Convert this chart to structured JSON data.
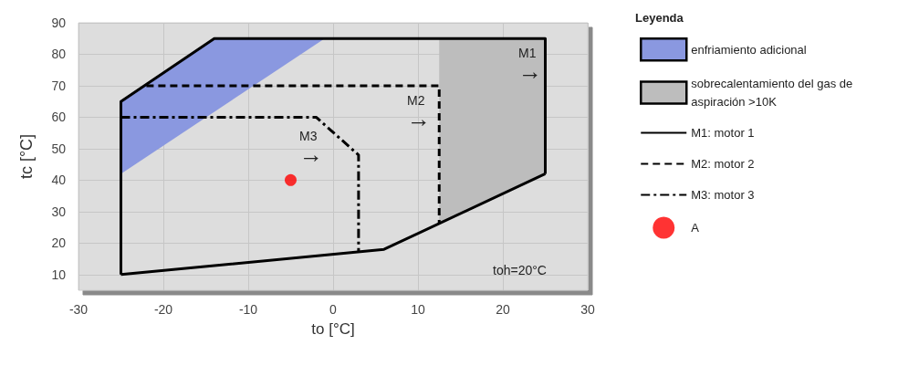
{
  "chart_data": {
    "type": "line",
    "xlabel": "to [°C]",
    "ylabel": "tc [°C]",
    "legend_title": "Leyenda",
    "xlim": [
      -30,
      30
    ],
    "xticks": [
      -30,
      -20,
      -10,
      0,
      10,
      20,
      30
    ],
    "ylim": [
      5,
      90
    ],
    "yticks": [
      10,
      20,
      30,
      40,
      50,
      60,
      70,
      80,
      90
    ],
    "grid": true,
    "legend": "right",
    "annotations": [
      "M1\n→",
      "M2\n→",
      "M3\n→",
      "toh=20°C"
    ],
    "series": [
      {
        "name": "M1: motor 1",
        "type": "line",
        "color": "#000000",
        "line_style": "solid",
        "x": [
          -25,
          -25,
          -14,
          25,
          25
        ],
        "values": [
          10,
          65,
          85,
          85,
          42
        ]
      },
      {
        "type": "line",
        "color": "#000000",
        "line_style": "solid",
        "x": [
          -25,
          6,
          25
        ],
        "values": [
          10,
          18,
          42
        ]
      },
      {
        "name": "M2: motor 2",
        "type": "line",
        "color": "#000000",
        "line_style": "dashed",
        "x": [
          -22,
          12.5,
          12.5
        ],
        "values": [
          70,
          70,
          26
        ]
      },
      {
        "name": "M3: motor 3",
        "type": "line",
        "color": "#000000",
        "line_style": "dashdot",
        "x": [
          -25,
          -2,
          3,
          3
        ],
        "values": [
          60,
          60,
          48,
          17
        ]
      },
      {
        "name": "enfriamiento adicional",
        "type": "area",
        "color": "#8a98e0",
        "x": [
          -25,
          -25,
          -14,
          -1
        ],
        "values": [
          42,
          65,
          85,
          85
        ]
      },
      {
        "name": "sobrecalentamiento del gas de aspiración >10K",
        "type": "area",
        "color": "#bdbdbd",
        "x": [
          12.5,
          25,
          25,
          12.5
        ],
        "values": [
          85,
          85,
          42,
          26
        ]
      },
      {
        "name": "A",
        "type": "scatter",
        "color": "#ff0000",
        "marker": "circle",
        "x": [
          -5
        ],
        "values": [
          40
        ]
      }
    ]
  }
}
